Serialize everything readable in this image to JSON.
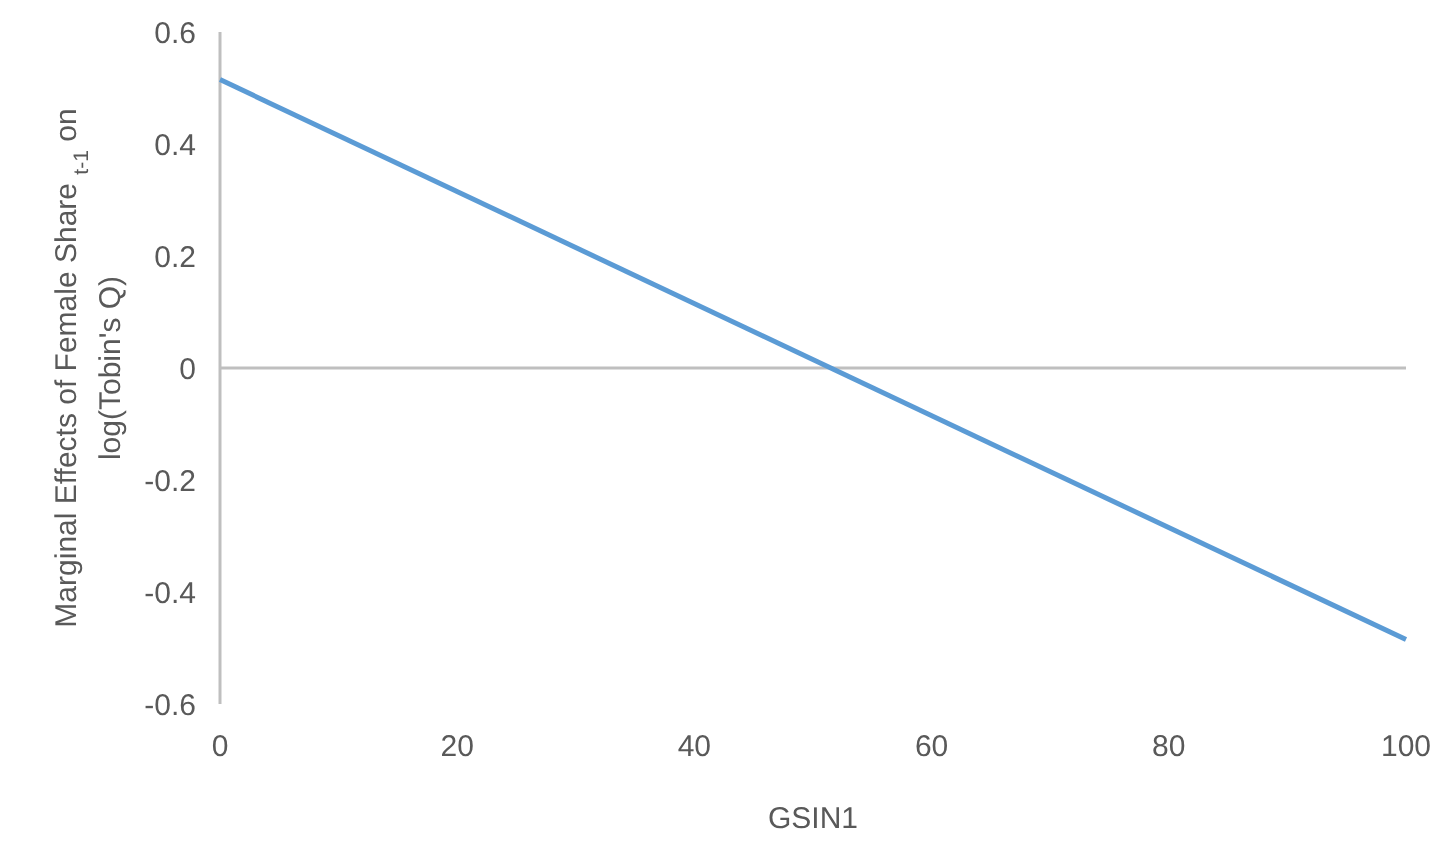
{
  "chart_data": {
    "type": "line",
    "xlabel": "GSIN1",
    "ylabel": "Marginal Effects of Female Share $_{t-1}$ on log(Tobin's Q)",
    "x": [
      0,
      100
    ],
    "series": [
      {
        "color": "#5b9bd5",
        "values": [
          0.515,
          -0.485
        ]
      }
    ],
    "xlim": [
      0,
      100
    ],
    "xticks": [
      0,
      20,
      40,
      60,
      80,
      100
    ],
    "ylim": [
      -0.6,
      0.6
    ],
    "yticks": [
      -0.6,
      -0.4,
      -0.2,
      0,
      0.2,
      0.4,
      0.6
    ],
    "marker": "none",
    "line_style": "solid"
  }
}
